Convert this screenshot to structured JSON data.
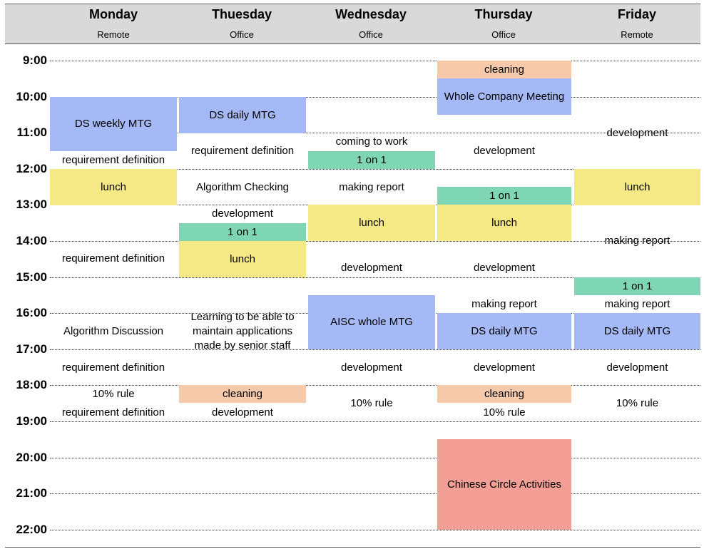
{
  "days": [
    {
      "name": "Monday",
      "mode": "Remote"
    },
    {
      "name": "Thuesday",
      "mode": "Office"
    },
    {
      "name": "Wednesday",
      "mode": "Office"
    },
    {
      "name": "Thursday",
      "mode": "Office"
    },
    {
      "name": "Friday",
      "mode": "Remote"
    }
  ],
  "times": [
    "9:00",
    "10:00",
    "11:00",
    "12:00",
    "13:00",
    "14:00",
    "15:00",
    "16:00",
    "17:00",
    "18:00",
    "19:00",
    "20:00",
    "21:00",
    "22:00"
  ],
  "events": {
    "monday": [
      {
        "label": "DS weekly MTG",
        "color": "#a4b9f5",
        "start": "10:00",
        "end": "11:30"
      },
      {
        "label": "requirement definition",
        "start": "11:30",
        "end": "12:00"
      },
      {
        "label": "lunch",
        "color": "#f4e985",
        "start": "12:00",
        "end": "13:00"
      },
      {
        "label": "requirement definition",
        "start": "13:00",
        "end": "16:00"
      },
      {
        "label": "Algorithm Discussion",
        "start": "16:00",
        "end": "17:00"
      },
      {
        "label": "requirement definition",
        "start": "17:00",
        "end": "18:00"
      },
      {
        "label": "10% rule",
        "start": "18:00",
        "end": "18:30"
      },
      {
        "label": "requirement definition",
        "start": "18:30",
        "end": "19:00"
      }
    ],
    "tuesday": [
      {
        "label": "DS daily MTG",
        "color": "#a4b9f5",
        "start": "10:00",
        "end": "11:00"
      },
      {
        "label": "requirement definition",
        "start": "11:00",
        "end": "12:00"
      },
      {
        "label": "Algorithm Checking",
        "start": "12:00",
        "end": "13:00"
      },
      {
        "label": "development",
        "start": "13:00",
        "end": "13:30"
      },
      {
        "label": "1 on 1",
        "color": "#7fd6b4",
        "start": "13:30",
        "end": "14:00"
      },
      {
        "label": "lunch",
        "color": "#f4e985",
        "start": "14:00",
        "end": "15:00"
      },
      {
        "label": "Learning to be able to maintain applications made by senior staff",
        "start": "15:00",
        "end": "18:00"
      },
      {
        "label": "cleaning",
        "color": "#f6c9ab",
        "start": "18:00",
        "end": "18:30"
      },
      {
        "label": "development",
        "start": "18:30",
        "end": "19:00"
      }
    ],
    "wednesday": [
      {
        "label": "coming to work",
        "start": "11:00",
        "end": "11:30"
      },
      {
        "label": "1 on 1",
        "color": "#7fd6b4",
        "start": "11:30",
        "end": "12:00"
      },
      {
        "label": "making report",
        "start": "12:00",
        "end": "13:00"
      },
      {
        "label": "lunch",
        "color": "#f4e985",
        "start": "13:00",
        "end": "14:00"
      },
      {
        "label": "development",
        "start": "14:00",
        "end": "15:30"
      },
      {
        "label": "AISC whole MTG",
        "color": "#a4b9f5",
        "start": "15:30",
        "end": "17:00"
      },
      {
        "label": "development",
        "start": "17:00",
        "end": "18:00"
      },
      {
        "label": "10% rule",
        "start": "18:00",
        "end": "19:00"
      }
    ],
    "thursday": [
      {
        "label": "cleaning",
        "color": "#f6c9ab",
        "start": "9:00",
        "end": "9:30"
      },
      {
        "label": "Whole Company Meeting",
        "color": "#a4b9f5",
        "start": "9:30",
        "end": "10:30"
      },
      {
        "label": "development",
        "start": "10:30",
        "end": "12:30"
      },
      {
        "label": "1 on 1",
        "color": "#7fd6b4",
        "start": "12:30",
        "end": "13:00"
      },
      {
        "label": "lunch",
        "color": "#f4e985",
        "start": "13:00",
        "end": "14:00"
      },
      {
        "label": "development",
        "start": "14:00",
        "end": "15:30"
      },
      {
        "label": "making report",
        "start": "15:30",
        "end": "16:00"
      },
      {
        "label": "DS daily MTG",
        "color": "#a4b9f5",
        "start": "16:00",
        "end": "17:00"
      },
      {
        "label": "development",
        "start": "17:00",
        "end": "18:00"
      },
      {
        "label": "cleaning",
        "color": "#f6c9ab",
        "start": "18:00",
        "end": "18:30"
      },
      {
        "label": "10% rule",
        "start": "18:30",
        "end": "19:00"
      },
      {
        "label": "Chinese Circle Activities",
        "color": "#f39f95",
        "start": "19:30",
        "end": "22:00"
      }
    ],
    "friday": [
      {
        "label": "development",
        "start": "10:00",
        "end": "12:00"
      },
      {
        "label": "lunch",
        "color": "#f4e985",
        "start": "12:00",
        "end": "13:00"
      },
      {
        "label": "making report",
        "start": "13:00",
        "end": "15:00"
      },
      {
        "label": "1 on 1",
        "color": "#7fd6b4",
        "start": "15:00",
        "end": "15:30"
      },
      {
        "label": "making report",
        "start": "15:30",
        "end": "16:00"
      },
      {
        "label": "DS daily MTG",
        "color": "#a4b9f5",
        "start": "16:00",
        "end": "17:00"
      },
      {
        "label": "development",
        "start": "17:00",
        "end": "18:00"
      },
      {
        "label": "10% rule",
        "start": "18:00",
        "end": "19:00"
      }
    ]
  }
}
